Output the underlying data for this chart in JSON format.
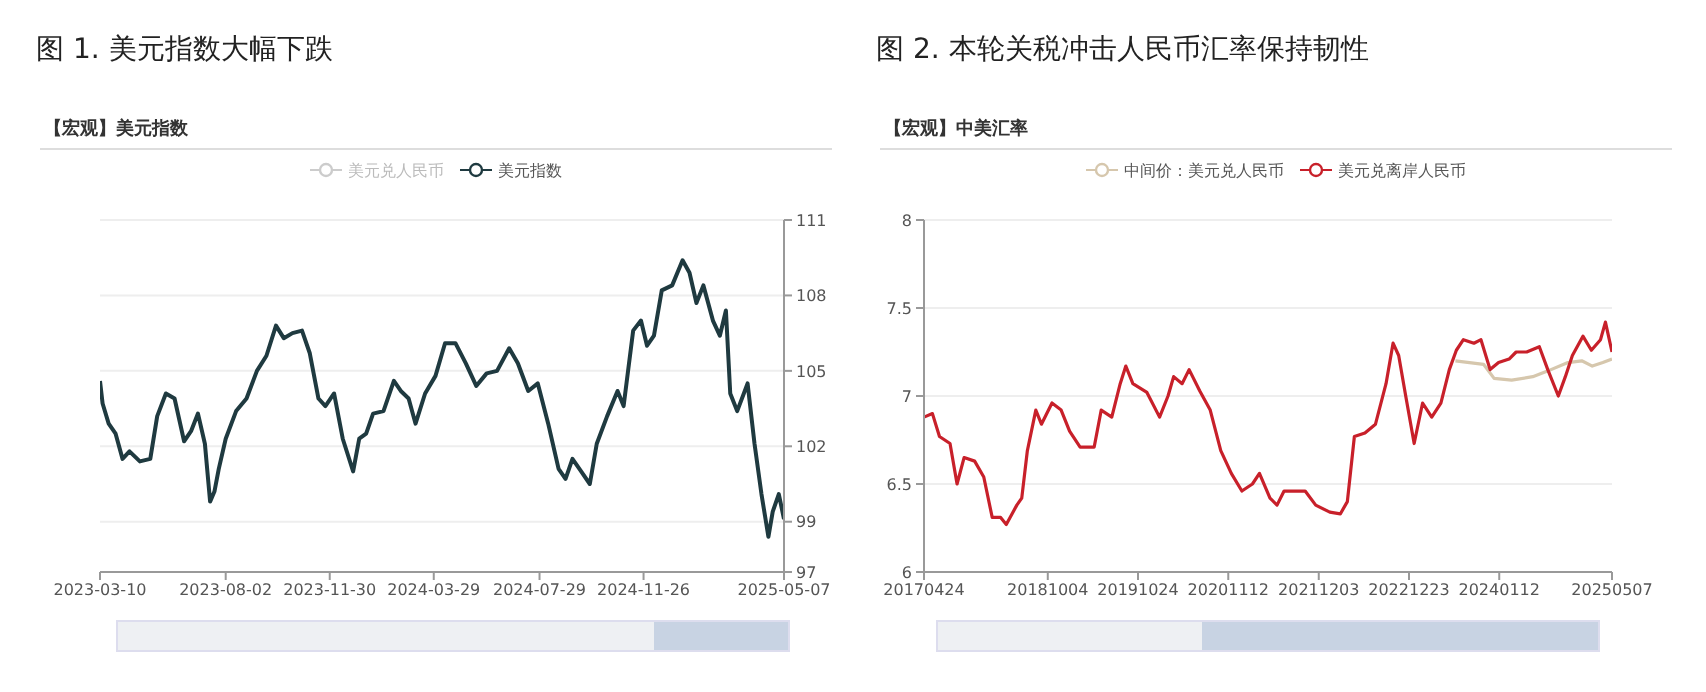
{
  "chart_data": [
    {
      "type": "line",
      "title": "图 1.  美元指数大幅下跌",
      "subtitle": "【宏观】美元指数",
      "x": [
        "2023-03-10",
        "2023-03-13",
        "2023-03-20",
        "2023-03-28",
        "2023-04-05",
        "2023-04-13",
        "2023-04-25",
        "2023-05-07",
        "2023-05-15",
        "2023-05-25",
        "2023-06-04",
        "2023-06-15",
        "2023-06-23",
        "2023-07-01",
        "2023-07-09",
        "2023-07-15",
        "2023-07-20",
        "2023-07-25",
        "2023-08-02",
        "2023-08-14",
        "2023-08-26",
        "2023-09-07",
        "2023-09-18",
        "2023-09-29",
        "2023-10-08",
        "2023-10-18",
        "2023-10-29",
        "2023-11-07",
        "2023-11-17",
        "2023-11-25",
        "2023-12-05",
        "2023-12-15",
        "2023-12-27",
        "2024-01-03",
        "2024-01-11",
        "2024-01-19",
        "2024-01-31",
        "2024-02-12",
        "2024-02-20",
        "2024-02-29",
        "2024-03-08",
        "2024-03-19",
        "2024-03-31",
        "2024-04-11",
        "2024-04-23",
        "2024-05-05",
        "2024-05-17",
        "2024-05-29",
        "2024-06-10",
        "2024-06-24",
        "2024-07-04",
        "2024-07-16",
        "2024-07-27",
        "2024-08-08",
        "2024-08-20",
        "2024-08-28",
        "2024-09-05",
        "2024-09-15",
        "2024-09-25",
        "2024-10-03",
        "2024-10-15",
        "2024-10-27",
        "2024-11-03",
        "2024-11-14",
        "2024-11-23",
        "2024-11-30",
        "2024-12-08",
        "2024-12-17",
        "2024-12-29",
        "2025-01-10",
        "2025-01-18",
        "2025-01-26",
        "2025-02-03",
        "2025-02-14",
        "2025-02-22",
        "2025-03-01",
        "2025-03-06",
        "2025-03-14",
        "2025-03-26",
        "2025-04-03",
        "2025-04-11",
        "2025-04-19",
        "2025-04-24",
        "2025-05-01",
        "2025-05-07"
      ],
      "series": [
        {
          "name": "美元兑人民币",
          "color": "#cccccc",
          "values": [
            null,
            null,
            null,
            null,
            null,
            null,
            null,
            null,
            null,
            null,
            null,
            null,
            null,
            null,
            null,
            null,
            null,
            null,
            null,
            null,
            null,
            null,
            null,
            null,
            null,
            null,
            null,
            null,
            null,
            null,
            null,
            null,
            null,
            null,
            null,
            null,
            null,
            null,
            null,
            null,
            null,
            null,
            null,
            null,
            null,
            null,
            null,
            null,
            null,
            null,
            null,
            null,
            null,
            null,
            null,
            null,
            null,
            null,
            null,
            null,
            null,
            null,
            null,
            null,
            null,
            null,
            null,
            null,
            null,
            null,
            null,
            null,
            null,
            null,
            null,
            null,
            null,
            null,
            null,
            null,
            null,
            null,
            null,
            null,
            null
          ]
        },
        {
          "name": "美元指数",
          "color": "#1f3a40",
          "values": [
            104.6,
            103.7,
            102.9,
            102.5,
            101.5,
            101.8,
            101.4,
            101.5,
            103.2,
            104.1,
            103.9,
            102.2,
            102.6,
            103.3,
            102.1,
            99.8,
            100.2,
            101.1,
            102.3,
            103.4,
            103.9,
            105.0,
            105.6,
            106.8,
            106.3,
            106.5,
            106.6,
            105.7,
            103.9,
            103.6,
            104.1,
            102.3,
            101.0,
            102.3,
            102.5,
            103.3,
            103.4,
            104.6,
            104.2,
            103.9,
            102.9,
            104.1,
            104.8,
            106.1,
            106.1,
            105.3,
            104.4,
            104.9,
            105.0,
            105.9,
            105.3,
            104.2,
            104.5,
            102.9,
            101.1,
            100.7,
            101.5,
            101.0,
            100.5,
            102.1,
            103.2,
            104.2,
            103.6,
            106.6,
            107.0,
            106.0,
            106.4,
            108.2,
            108.4,
            109.4,
            108.9,
            107.7,
            108.4,
            107.0,
            106.4,
            107.4,
            104.1,
            103.4,
            104.5,
            102.1,
            100.1,
            98.4,
            99.4,
            100.1,
            99.1
          ]
        }
      ],
      "xlim": [
        "2023-03-10",
        "2025-05-07"
      ],
      "xticks": [
        "2023-03-10",
        "2023-08-02",
        "2023-11-30",
        "2024-03-29",
        "2024-07-29",
        "2024-11-26",
        "2025-05-07"
      ],
      "ylim": [
        97,
        111
      ],
      "yticks": [
        97,
        99,
        102,
        105,
        108,
        111
      ],
      "grid": "y",
      "legend": "top",
      "marker": "none",
      "line_style": "solid"
    },
    {
      "type": "line",
      "title": "图 2.  本轮关税冲击人民币汇率保持韧性",
      "subtitle": "【宏观】中美汇率",
      "series": [
        {
          "name": "中间价：美元兑人民币",
          "color": "#d6c7ad",
          "x": [
            "2023-07-09",
            "2023-09-07",
            "2023-11-06",
            "2023-12-21",
            "2024-03-05",
            "2024-06-03",
            "2024-08-02",
            "2024-10-31",
            "2024-12-29",
            "2025-02-12",
            "2025-03-29",
            "2025-05-07"
          ],
          "values": [
            7.2,
            7.19,
            7.18,
            7.1,
            7.09,
            7.11,
            7.14,
            7.19,
            7.2,
            7.17,
            7.19,
            7.21
          ]
        },
        {
          "name": "美元兑离岸人民币",
          "color": "#c8202a",
          "x": [
            "2017-04-24",
            "2017-05-30",
            "2017-06-29",
            "2017-08-13",
            "2017-09-12",
            "2017-10-12",
            "2017-11-26",
            "2018-01-04",
            "2018-02-09",
            "2018-03-17",
            "2018-04-10",
            "2018-05-25",
            "2018-06-15",
            "2018-07-09",
            "2018-08-14",
            "2018-09-07",
            "2018-10-22",
            "2018-11-30",
            "2019-01-05",
            "2019-02-19",
            "2019-04-20",
            "2019-05-20",
            "2019-07-04",
            "2019-08-09",
            "2019-09-02",
            "2019-10-02",
            "2019-12-01",
            "2020-01-24",
            "2020-02-29",
            "2020-03-24",
            "2020-04-29",
            "2020-05-29",
            "2020-07-13",
            "2020-08-27",
            "2020-10-11",
            "2020-11-25",
            "2021-01-09",
            "2021-02-23",
            "2021-03-25",
            "2021-05-09",
            "2021-06-08",
            "2021-07-08",
            "2021-08-22",
            "2021-10-06",
            "2021-11-20",
            "2022-01-19",
            "2022-03-05",
            "2022-04-04",
            "2022-05-04",
            "2022-06-18",
            "2022-08-02",
            "2022-09-16",
            "2022-10-16",
            "2022-11-09",
            "2022-12-09",
            "2023-01-14",
            "2023-02-19",
            "2023-03-30",
            "2023-05-08",
            "2023-06-13",
            "2023-07-13",
            "2023-08-12",
            "2023-09-26",
            "2023-10-26",
            "2023-12-04",
            "2024-01-09",
            "2024-02-23",
            "2024-03-24",
            "2024-05-08",
            "2024-07-01",
            "2024-08-06",
            "2024-09-20",
            "2024-10-20",
            "2024-11-19",
            "2025-01-03",
            "2025-02-08",
            "2025-03-19",
            "2025-04-09",
            "2025-05-07"
          ],
          "values": [
            6.88,
            6.9,
            6.77,
            6.73,
            6.5,
            6.65,
            6.63,
            6.54,
            6.31,
            6.31,
            6.27,
            6.38,
            6.42,
            6.69,
            6.92,
            6.84,
            6.96,
            6.92,
            6.8,
            6.71,
            6.71,
            6.92,
            6.88,
            7.07,
            7.17,
            7.07,
            7.02,
            6.88,
            7.0,
            7.11,
            7.07,
            7.15,
            7.03,
            6.92,
            6.69,
            6.56,
            6.46,
            6.5,
            6.56,
            6.42,
            6.38,
            6.46,
            6.46,
            6.46,
            6.38,
            6.34,
            6.33,
            6.4,
            6.77,
            6.79,
            6.84,
            7.07,
            7.3,
            7.23,
            7.0,
            6.73,
            6.96,
            6.88,
            6.96,
            7.15,
            7.26,
            7.32,
            7.3,
            7.32,
            7.15,
            7.19,
            7.21,
            7.25,
            7.25,
            7.28,
            7.15,
            7.0,
            7.11,
            7.23,
            7.34,
            7.26,
            7.32,
            7.42,
            7.25
          ]
        }
      ],
      "xlim": [
        "2017-04-24",
        "2025-05-07"
      ],
      "xticks": [
        {
          "value": "2017-04-24",
          "label": "20170424"
        },
        {
          "value": "2018-10-04",
          "label": "20181004"
        },
        {
          "value": "2019-10-24",
          "label": "20191024"
        },
        {
          "value": "2020-11-12",
          "label": "20201112"
        },
        {
          "value": "2021-12-03",
          "label": "20211203"
        },
        {
          "value": "2022-12-23",
          "label": "20221223"
        },
        {
          "value": "2024-01-12",
          "label": "20240112"
        },
        {
          "value": "2025-05-07",
          "label": "20250507"
        }
      ],
      "ylim": [
        6,
        8
      ],
      "yticks": [
        6,
        6.5,
        7,
        7.5,
        8
      ],
      "grid": "y",
      "legend": "top",
      "marker": "none",
      "line_style": "solid"
    }
  ]
}
